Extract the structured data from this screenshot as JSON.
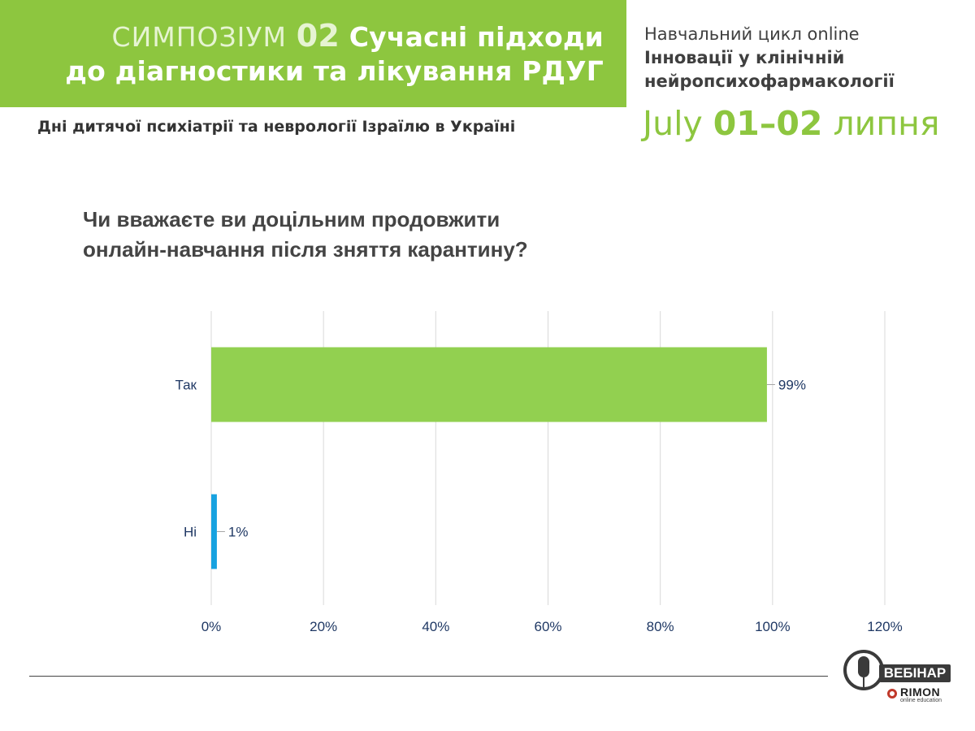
{
  "header": {
    "symposium_word": "СИМПОЗІУМ",
    "symposium_number": "02",
    "title_line1": "Сучасні підходи",
    "title_line2": "до діагностики та лікування РДУГ",
    "subheader": "Дні дитячої психіатрії та неврології Ізраїлю в Україні"
  },
  "cycle": {
    "line1": "Навчальний цикл online",
    "line2": "Інновації у клінічній",
    "line3": "нейропсихофармакології"
  },
  "date": {
    "july": "July",
    "days": "01–02",
    "month_ua": "липня"
  },
  "question": {
    "line1": "Чи вважаєте ви доцільним продовжити",
    "line2": "онлайн-навчання після зняття карантину?"
  },
  "logo": {
    "webinar": "ВЕБІНАР",
    "brand": "RIMON",
    "tagline": "online education"
  },
  "colors": {
    "accent": "#8dc63f",
    "bar_yes": "#92d050",
    "bar_no": "#17a2e0",
    "axis_text": "#1f3864"
  },
  "chart_data": {
    "type": "bar",
    "orientation": "horizontal",
    "categories": [
      "Так",
      "Ні"
    ],
    "values": [
      99,
      1
    ],
    "data_labels": [
      "99%",
      "1%"
    ],
    "bar_colors": [
      "#92d050",
      "#17a2e0"
    ],
    "xlim": [
      0,
      120
    ],
    "xticks": [
      0,
      20,
      40,
      60,
      80,
      100,
      120
    ],
    "xtick_labels": [
      "0%",
      "20%",
      "40%",
      "60%",
      "80%",
      "100%",
      "120%"
    ],
    "grid": true,
    "legend": "none"
  }
}
